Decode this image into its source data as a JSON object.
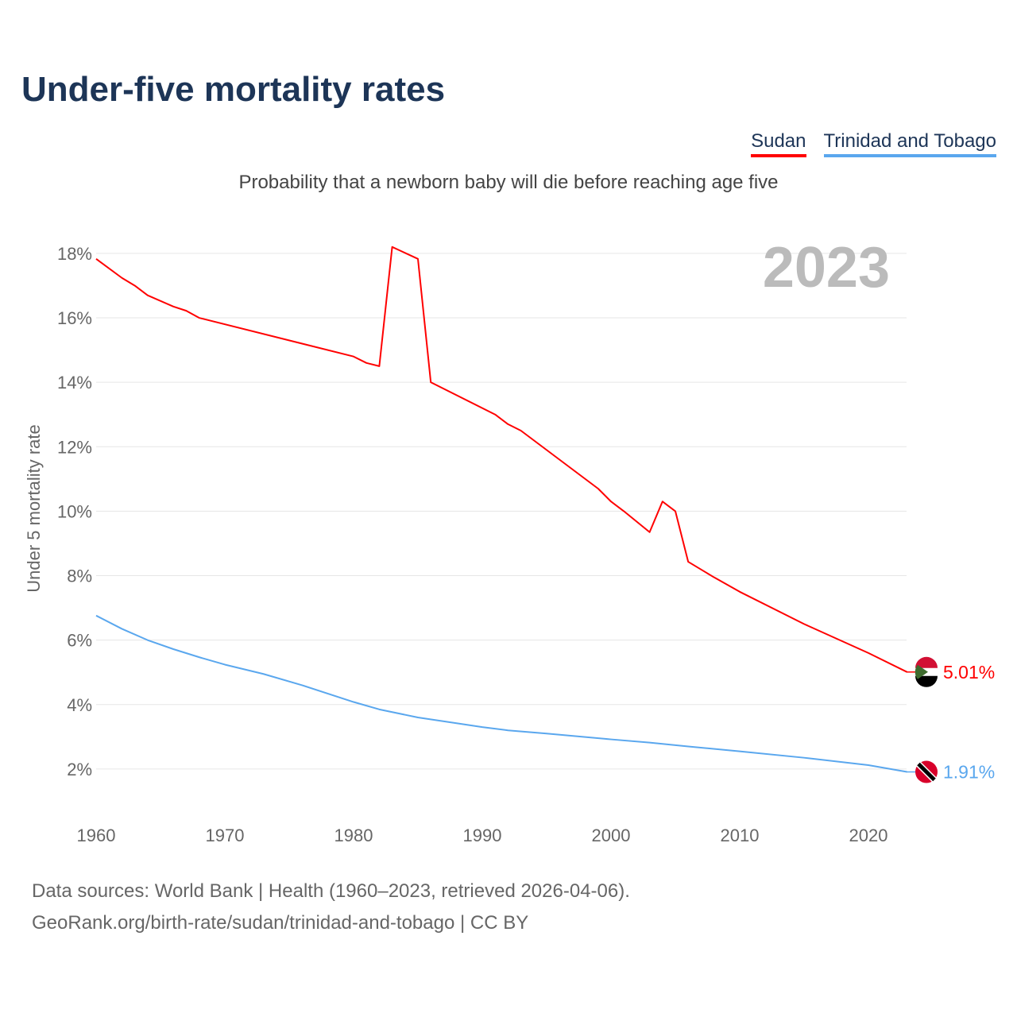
{
  "title": "Under-five mortality rates",
  "subtitle": "Probability that a newborn baby will die before reaching age five",
  "legend": [
    "Sudan",
    "Trinidad and Tobago"
  ],
  "year_label": "2023",
  "sources": {
    "line1": "Data sources: World Bank | Health (1960–2023, retrieved 2026-04-06).",
    "line2": "GeoRank.org/birth-rate/sudan/trinidad-and-tobago | CC BY"
  },
  "chart_data": {
    "type": "line",
    "title": "Under-five mortality rates",
    "xlabel": "",
    "ylabel": "Under 5 mortality rate",
    "xlim": [
      1960,
      2023
    ],
    "ylim": [
      0,
      19
    ],
    "xticks": [
      "1960",
      "1970",
      "1980",
      "1990",
      "2000",
      "2010",
      "2020"
    ],
    "yticks": [
      "2%",
      "4%",
      "6%",
      "8%",
      "10%",
      "12%",
      "14%",
      "16%",
      "18%"
    ],
    "grid": true,
    "legend_position": "top-right",
    "series": [
      {
        "name": "Sudan",
        "color": "#ff0000",
        "end_label": "5.01%",
        "x": [
          1960,
          1962,
          1963,
          1964,
          1966,
          1967,
          1968,
          1980,
          1981,
          1982,
          1983,
          1985,
          1986,
          1991,
          1992,
          1993,
          1999,
          2000,
          2001,
          2003,
          2004,
          2005,
          2006,
          2008,
          2010,
          2015,
          2020,
          2023
        ],
        "y": [
          17.83,
          17.24,
          17.0,
          16.7,
          16.35,
          16.22,
          16.0,
          14.8,
          14.6,
          14.5,
          18.2,
          17.83,
          14.0,
          13.0,
          12.7,
          12.5,
          10.7,
          10.3,
          10.0,
          9.35,
          10.3,
          10.0,
          8.43,
          7.95,
          7.5,
          6.5,
          5.6,
          5.01
        ]
      },
      {
        "name": "Trinidad and Tobago",
        "color": "#5aa7ee",
        "end_label": "1.91%",
        "x": [
          1960,
          1962,
          1964,
          1966,
          1968,
          1970,
          1973,
          1976,
          1980,
          1982,
          1985,
          1988,
          1990,
          1992,
          1995,
          2000,
          2003,
          2006,
          2010,
          2015,
          2020,
          2023
        ],
        "y": [
          6.76,
          6.35,
          6.0,
          5.72,
          5.47,
          5.24,
          4.95,
          4.6,
          4.08,
          3.85,
          3.6,
          3.42,
          3.3,
          3.2,
          3.1,
          2.92,
          2.82,
          2.7,
          2.55,
          2.35,
          2.12,
          1.91
        ]
      }
    ]
  }
}
